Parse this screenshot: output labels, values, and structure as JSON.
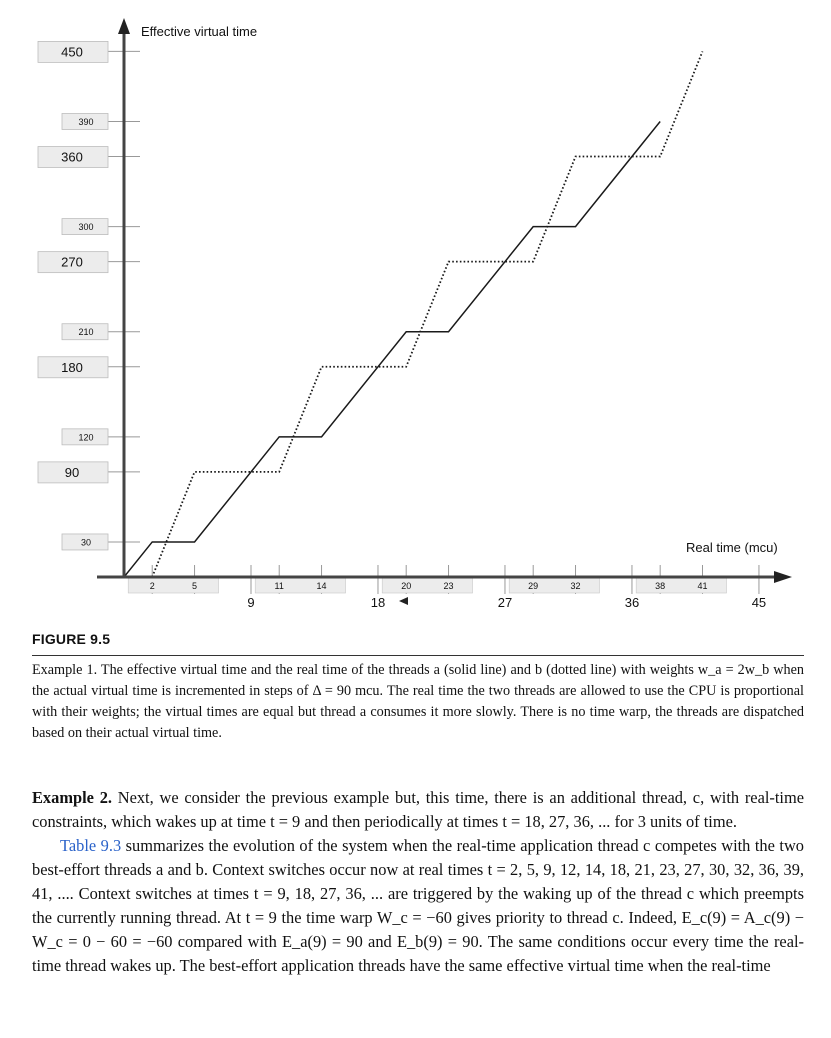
{
  "chart_data": {
    "type": "line",
    "ylabel": "Effective virtual time",
    "xlabel": "Real time (mcu)",
    "xlim": [
      0,
      47
    ],
    "ylim": [
      0,
      470
    ],
    "y_ticks_big": [
      90,
      180,
      270,
      360,
      450
    ],
    "y_ticks_small": [
      30,
      120,
      210,
      300,
      390
    ],
    "x_ticks_big": [
      9,
      18,
      27,
      36,
      45
    ],
    "x_ticks_small": [
      2,
      5,
      11,
      14,
      20,
      23,
      29,
      32,
      38,
      41
    ],
    "series": [
      {
        "style": "solid",
        "x": [
          0,
          2,
          5,
          11,
          14,
          20,
          23,
          29,
          32,
          38
        ],
        "y": [
          0,
          30,
          30,
          120,
          120,
          210,
          210,
          300,
          300,
          390
        ]
      },
      {
        "style": "dotted",
        "x": [
          2,
          5,
          11,
          14,
          20,
          23,
          29,
          32,
          38,
          41
        ],
        "y": [
          0,
          90,
          90,
          180,
          180,
          270,
          270,
          360,
          360,
          450
        ]
      }
    ]
  },
  "figure": {
    "title": "FIGURE 9.5",
    "caption": "Example 1. The effective virtual time and the real time of the threads a (solid line) and b (dotted line) with weights w_a = 2w_b when the actual virtual time is incremented in steps of Δ = 90 mcu. The real time the two threads are allowed to use the CPU is proportional with their weights; the virtual times are equal but thread a consumes it more slowly. There is no time warp, the threads are dispatched based on their actual virtual time."
  },
  "body": {
    "para1_lead": "Example 2.",
    "para1_rest": " Next, we consider the previous example but, this time, there is an additional thread, c, with real-time constraints, which wakes up at time t = 9 and then periodically at times t = 18, 27, 36, ... for 3 units of time.",
    "para2_ref": "Table 9.3",
    "para2_rest": " summarizes the evolution of the system when the real-time application thread c competes with the two best-effort threads a and b. Context switches occur now at real times t = 2, 5, 9, 12, 14, 18, 21, 23, 27, 30, 32, 36, 39, 41, .... Context switches at times t = 9, 18, 27, 36, ... are triggered by the waking up of the thread c which preempts the currently running thread. At t = 9 the time warp W_c = −60 gives priority to thread c. Indeed, E_c(9) = A_c(9) − W_c = 0 − 60 = −60 compared with E_a(9) = 90 and E_b(9) = 90. The same conditions occur every time the real-time thread wakes up. The best-effort application threads have the same effective virtual time when the real-time"
  }
}
